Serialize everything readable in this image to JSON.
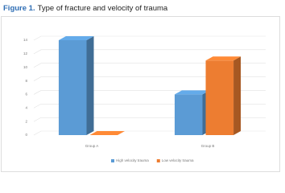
{
  "chart_data": {
    "type": "bar",
    "figure_label": "Figure 1.",
    "title": "Type of fracture and velocity of trauma",
    "categories": [
      "Group A",
      "Group B"
    ],
    "series": [
      {
        "name": "High velocity trauma",
        "color": "#5b9bd5",
        "values": [
          14,
          6
        ]
      },
      {
        "name": "Low velocity trauma",
        "color": "#ed7d31",
        "values": [
          0,
          11
        ]
      }
    ],
    "ylim": [
      0,
      14
    ],
    "yticks": [
      0,
      2,
      4,
      6,
      8,
      10,
      12,
      14
    ],
    "grid": true,
    "legend": "bottom"
  }
}
